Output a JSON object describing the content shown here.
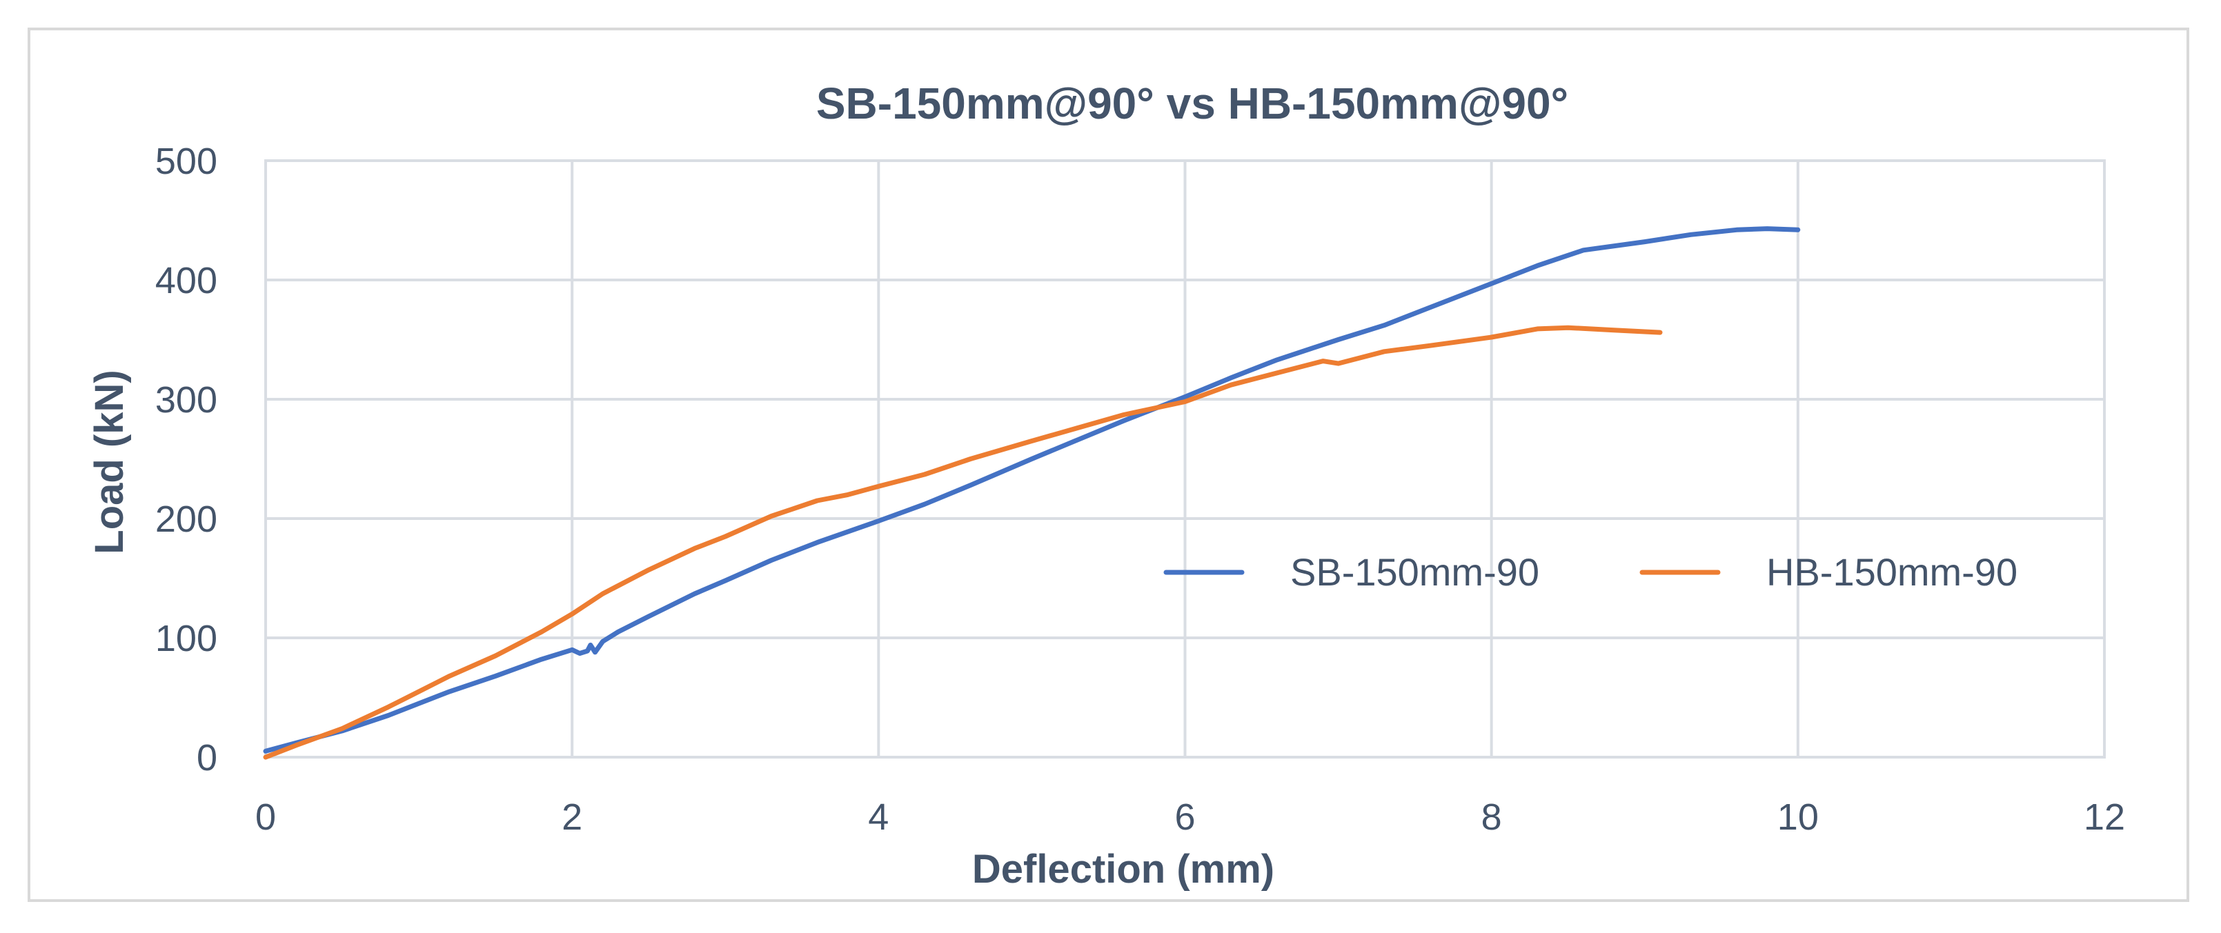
{
  "chart_data": {
    "type": "line",
    "title": "SB-150mm@90° vs HB-150mm@90°",
    "xlabel": "Deflection (mm)",
    "ylabel": "Load (kN)",
    "xlim": [
      0,
      12
    ],
    "ylim": [
      0,
      500
    ],
    "xticks": [
      "0",
      "2",
      "4",
      "6",
      "8",
      "10",
      "12"
    ],
    "yticks": [
      "0",
      "100",
      "200",
      "300",
      "400",
      "500"
    ],
    "grid": true,
    "legend_position": "right",
    "series": [
      {
        "name": "SB-150mm-90",
        "color": "#4472c4",
        "x": [
          0,
          0.2,
          0.5,
          0.8,
          1.0,
          1.2,
          1.5,
          1.8,
          2.0,
          2.05,
          2.1,
          2.12,
          2.15,
          2.2,
          2.3,
          2.5,
          2.8,
          3.0,
          3.3,
          3.6,
          4.0,
          4.3,
          4.6,
          5.0,
          5.3,
          5.6,
          6.0,
          6.3,
          6.6,
          7.0,
          7.3,
          7.6,
          8.0,
          8.3,
          8.6,
          9.0,
          9.3,
          9.6,
          9.8,
          10.0
        ],
        "y": [
          5,
          12,
          22,
          35,
          45,
          55,
          68,
          82,
          90,
          87,
          89,
          94,
          88,
          97,
          105,
          118,
          137,
          148,
          165,
          180,
          198,
          212,
          228,
          250,
          266,
          282,
          302,
          318,
          333,
          350,
          362,
          377,
          397,
          412,
          425,
          432,
          438,
          442,
          443,
          442
        ]
      },
      {
        "name": "HB-150mm-90",
        "color": "#ed7d31",
        "x": [
          0,
          0.2,
          0.5,
          0.8,
          1.0,
          1.2,
          1.5,
          1.8,
          2.0,
          2.2,
          2.5,
          2.8,
          3.0,
          3.3,
          3.6,
          3.8,
          4.0,
          4.3,
          4.6,
          5.0,
          5.3,
          5.6,
          6.0,
          6.3,
          6.6,
          6.9,
          7.0,
          7.3,
          7.6,
          8.0,
          8.3,
          8.5,
          8.8,
          9.1
        ],
        "y": [
          0,
          10,
          24,
          42,
          55,
          68,
          85,
          105,
          120,
          137,
          157,
          175,
          185,
          202,
          215,
          220,
          227,
          237,
          250,
          265,
          276,
          287,
          298,
          312,
          322,
          332,
          330,
          340,
          345,
          352,
          359,
          360,
          358,
          356
        ]
      }
    ]
  }
}
